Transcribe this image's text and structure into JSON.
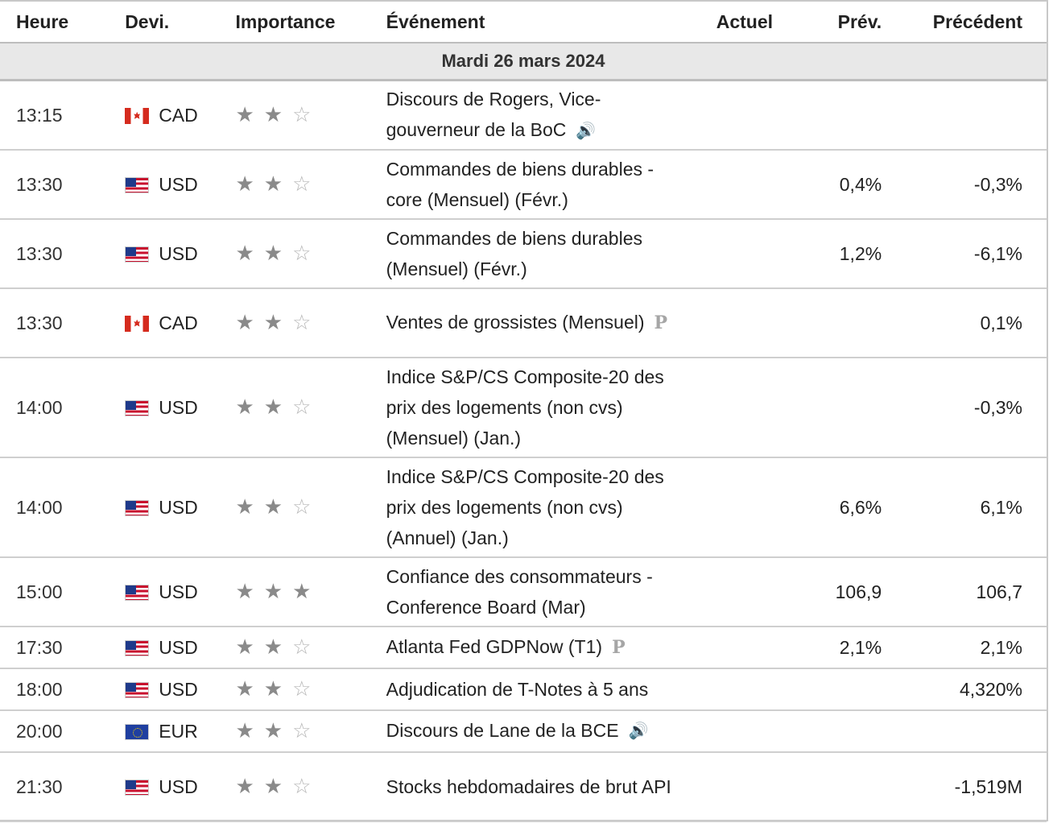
{
  "headers": {
    "time": "Heure",
    "currency": "Devi.",
    "importance": "Importance",
    "event": "Événement",
    "actual": "Actuel",
    "forecast": "Prév.",
    "previous": "Précédent"
  },
  "date_label": "Mardi 26 mars 2024",
  "icons": {
    "full_star": "★",
    "empty_star": "☆",
    "speech": "🔊",
    "preliminary": "P"
  },
  "events": [
    {
      "time": "13:15",
      "flag": "ca",
      "currency": "CAD",
      "stars": 2,
      "event": "Discours de Rogers, Vice-gouverneur de la BoC",
      "icon": "speech-icon",
      "actual": "",
      "forecast": "",
      "previous": ""
    },
    {
      "time": "13:30",
      "flag": "us",
      "currency": "USD",
      "stars": 2,
      "event": "Commandes de biens durables - core (Mensuel) (Févr.)",
      "icon": "",
      "actual": "",
      "forecast": "0,4%",
      "previous": "-0,3%"
    },
    {
      "time": "13:30",
      "flag": "us",
      "currency": "USD",
      "stars": 2,
      "event": "Commandes de biens durables (Mensuel) (Févr.)",
      "icon": "",
      "actual": "",
      "forecast": "1,2%",
      "previous": "-6,1%"
    },
    {
      "time": "13:30",
      "flag": "ca",
      "currency": "CAD",
      "stars": 2,
      "event": "Ventes de grossistes (Mensuel)",
      "icon": "preliminary-icon",
      "actual": "",
      "forecast": "",
      "previous": "0,1%"
    },
    {
      "time": "14:00",
      "flag": "us",
      "currency": "USD",
      "stars": 2,
      "event": "Indice S&P/CS Composite-20 des prix des logements (non cvs) (Mensuel) (Jan.)",
      "icon": "",
      "actual": "",
      "forecast": "",
      "previous": "-0,3%"
    },
    {
      "time": "14:00",
      "flag": "us",
      "currency": "USD",
      "stars": 2,
      "event": "Indice S&P/CS Composite-20 des prix des logements (non cvs) (Annuel) (Jan.)",
      "icon": "",
      "actual": "",
      "forecast": "6,6%",
      "previous": "6,1%"
    },
    {
      "time": "15:00",
      "flag": "us",
      "currency": "USD",
      "stars": 3,
      "event": "Confiance des consommateurs - Conference Board (Mar)",
      "icon": "",
      "actual": "",
      "forecast": "106,9",
      "previous": "106,7"
    },
    {
      "time": "17:30",
      "flag": "us",
      "currency": "USD",
      "stars": 2,
      "event": "Atlanta Fed GDPNow (T1)",
      "icon": "preliminary-icon",
      "actual": "",
      "forecast": "2,1%",
      "previous": "2,1%"
    },
    {
      "time": "18:00",
      "flag": "us",
      "currency": "USD",
      "stars": 2,
      "event": "Adjudication de T-Notes à 5 ans",
      "icon": "",
      "actual": "",
      "forecast": "",
      "previous": "4,320%"
    },
    {
      "time": "20:00",
      "flag": "eu",
      "currency": "EUR",
      "stars": 2,
      "event": "Discours de Lane de la BCE",
      "icon": "speech-icon",
      "actual": "",
      "forecast": "",
      "previous": ""
    },
    {
      "time": "21:30",
      "flag": "us",
      "currency": "USD",
      "stars": 2,
      "event": "Stocks hebdomadaires de brut API",
      "icon": "",
      "actual": "",
      "forecast": "",
      "previous": "-1,519M"
    }
  ]
}
